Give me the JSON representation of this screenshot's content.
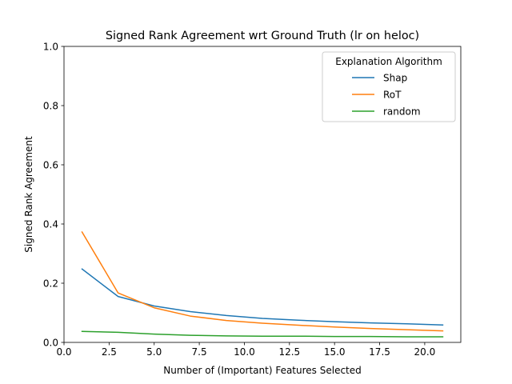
{
  "chart_data": {
    "type": "line",
    "title": "Signed Rank Agreement wrt Ground Truth (lr on heloc)",
    "xlabel": "Number of (Important) Features Selected",
    "ylabel": "Signed Rank Agreement",
    "xlim": [
      0,
      22
    ],
    "ylim": [
      0,
      1
    ],
    "xticks": [
      "0.0",
      "2.5",
      "5.0",
      "7.5",
      "10.0",
      "12.5",
      "15.0",
      "17.5",
      "20.0"
    ],
    "xtick_values": [
      0,
      2.5,
      5,
      7.5,
      10,
      12.5,
      15,
      17.5,
      20
    ],
    "yticks": [
      "0.0",
      "0.2",
      "0.4",
      "0.6",
      "0.8",
      "1.0"
    ],
    "ytick_values": [
      0,
      0.2,
      0.4,
      0.6,
      0.8,
      1.0
    ],
    "grid": false,
    "legend": {
      "title": "Explanation Algorithm",
      "placement": "top-right"
    },
    "x": [
      1,
      3,
      5,
      7,
      9,
      11,
      13,
      15,
      17,
      19,
      21
    ],
    "series": [
      {
        "name": "Shap",
        "color": "#1f77b4",
        "values": [
          0.248,
          0.155,
          0.123,
          0.104,
          0.091,
          0.081,
          0.075,
          0.07,
          0.066,
          0.063,
          0.059
        ]
      },
      {
        "name": "RoT",
        "color": "#ff7f0e",
        "values": [
          0.373,
          0.167,
          0.117,
          0.089,
          0.074,
          0.065,
          0.058,
          0.052,
          0.047,
          0.043,
          0.039
        ]
      },
      {
        "name": "random",
        "color": "#2ca02c",
        "values": [
          0.037,
          0.034,
          0.028,
          0.024,
          0.022,
          0.021,
          0.021,
          0.02,
          0.02,
          0.019,
          0.019
        ]
      }
    ]
  }
}
